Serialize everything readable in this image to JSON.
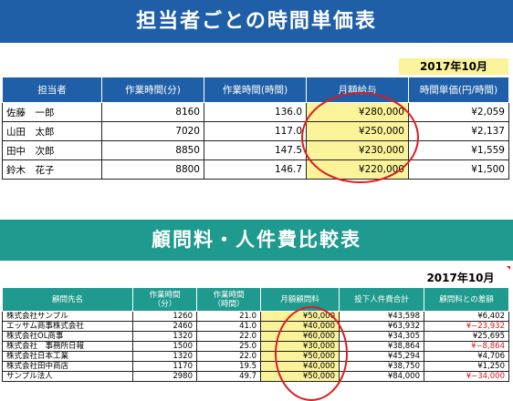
{
  "section1": {
    "title": "担当者ごとの時間単価表",
    "date": "2017年10月",
    "headers": [
      "担当者",
      "作業時間(分)",
      "作業時間(時間)",
      "月額給与",
      "時間単価(円/時間)"
    ],
    "rows": [
      {
        "name": "佐藤　一郎",
        "minutes": "8160",
        "hours": "136.0",
        "salary": "¥280,000",
        "rate": "¥2,059"
      },
      {
        "name": "山田　太郎",
        "minutes": "7020",
        "hours": "117.0",
        "salary": "¥250,000",
        "rate": "¥2,137"
      },
      {
        "name": "田中　次郎",
        "minutes": "8850",
        "hours": "147.5",
        "salary": "¥230,000",
        "rate": "¥1,559"
      },
      {
        "name": "鈴木　花子",
        "minutes": "8800",
        "hours": "146.7",
        "salary": "¥220,000",
        "rate": "¥1,500"
      }
    ]
  },
  "section2": {
    "title": "顧問料・人件費比較表",
    "date": "2017年10月",
    "headers": [
      "顧問先名",
      "作業時間\n（分）",
      "作業時間\n（時間）",
      "月額顧問料",
      "投下人件費合計",
      "顧問料との差額"
    ],
    "rows": [
      {
        "name": "株式会社サンプル",
        "minutes": "1260",
        "hours": "21.0",
        "fee": "¥50,000",
        "cost": "¥43,598",
        "diff": "¥6,402",
        "negative": false
      },
      {
        "name": "エッサム商事株式会社",
        "minutes": "2460",
        "hours": "41.0",
        "fee": "¥40,000",
        "cost": "¥63,932",
        "diff": "¥−23,932",
        "negative": true
      },
      {
        "name": "株式会社OL商事",
        "minutes": "1320",
        "hours": "22.0",
        "fee": "¥60,000",
        "cost": "¥34,305",
        "diff": "¥25,695",
        "negative": false
      },
      {
        "name": "株式会社　事務所日報",
        "minutes": "1500",
        "hours": "25.0",
        "fee": "¥30,000",
        "cost": "¥38,864",
        "diff": "¥−8,864",
        "negative": true
      },
      {
        "name": "株式会社日本工業",
        "minutes": "1320",
        "hours": "22.0",
        "fee": "¥50,000",
        "cost": "¥45,294",
        "diff": "¥4,706",
        "negative": false
      },
      {
        "name": "株式会社田中商店",
        "minutes": "1170",
        "hours": "19.5",
        "fee": "¥40,000",
        "cost": "¥38,750",
        "diff": "¥1,250",
        "negative": false
      },
      {
        "name": "サンプル法人",
        "minutes": "2980",
        "hours": "49.7",
        "fee": "¥50,000",
        "cost": "¥84,000",
        "diff": "¥−34,000",
        "negative": true
      }
    ]
  },
  "colors": {
    "banner1": "#1f5fa8",
    "banner2": "#1f9a8e",
    "highlight": "#fbf39a",
    "negative": "#e0141e",
    "circle": "#e01a22"
  }
}
